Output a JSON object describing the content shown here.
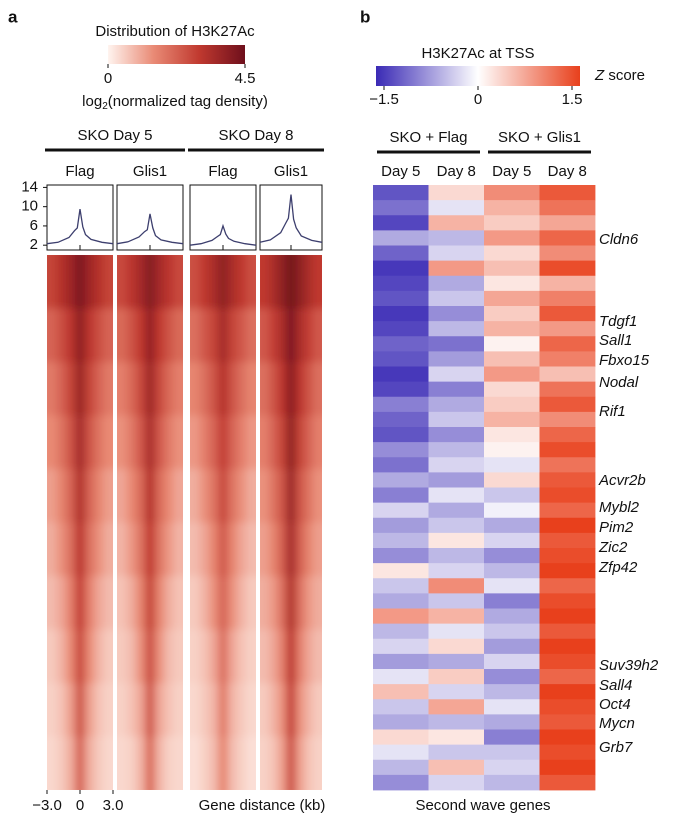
{
  "chart_data": [
    {
      "type": "heatmap_profile",
      "panel_label": "a",
      "colorbar_title": "Distribution of H3K27Ac",
      "colorbar_range": [
        0,
        4.5
      ],
      "colorbar_ticks": [
        0,
        4.5
      ],
      "colorbar_label": [
        "log",
        "2",
        "(normalized tag density)"
      ],
      "colormap": [
        "#fff4ef",
        "#e98a75",
        "#c0392f",
        "#6e0f1c"
      ],
      "groups": [
        "SKO Day 5",
        "SKO Day 8"
      ],
      "columns": [
        "Flag",
        "Glis1",
        "Flag",
        "Glis1"
      ],
      "line_color": "#3d3f6e",
      "x": [
        -3,
        -2,
        -1,
        -0.5,
        -0.25,
        0,
        0.25,
        0.5,
        1,
        2,
        3
      ],
      "profiles": [
        [
          2.3,
          2.6,
          3.6,
          5.0,
          5.6,
          9.5,
          5.8,
          4.2,
          3.2,
          2.6,
          2.3
        ],
        [
          2.3,
          2.7,
          3.7,
          4.8,
          5.2,
          8.5,
          5.6,
          4.0,
          3.1,
          2.6,
          2.3
        ],
        [
          2.0,
          2.3,
          3.0,
          3.8,
          4.2,
          6.0,
          4.3,
          3.4,
          2.8,
          2.3,
          2.0
        ],
        [
          2.6,
          3.1,
          4.6,
          6.6,
          7.6,
          12.5,
          7.4,
          5.6,
          3.9,
          3.0,
          2.6
        ]
      ],
      "xlim": [
        -3,
        3
      ],
      "ylim": [
        1,
        14.5
      ],
      "yticks": [
        14,
        10,
        6,
        2
      ],
      "xticks": [
        {
          "value": -3,
          "label": "−3.0"
        },
        0,
        {
          "value": 3,
          "label": "3.0"
        }
      ],
      "xlabel": "Gene distance (kb)",
      "heatmaps": [
        [
          [
            2.8,
            3.2,
            3.6,
            4.2,
            3.6,
            3.2,
            2.8
          ],
          [
            2.2,
            2.6,
            3.1,
            3.9,
            3.1,
            2.6,
            2.2
          ],
          [
            1.8,
            2.2,
            2.8,
            3.7,
            2.8,
            2.2,
            1.8
          ],
          [
            1.5,
            1.9,
            2.5,
            3.5,
            2.5,
            1.9,
            1.5
          ],
          [
            1.2,
            1.6,
            2.2,
            3.3,
            2.2,
            1.6,
            1.2
          ],
          [
            1.0,
            1.4,
            2.0,
            3.1,
            2.0,
            1.4,
            1.0
          ],
          [
            0.8,
            1.1,
            1.7,
            2.9,
            1.7,
            1.1,
            0.8
          ],
          [
            0.6,
            0.9,
            1.5,
            2.7,
            1.5,
            0.9,
            0.6
          ],
          [
            0.5,
            0.7,
            1.2,
            2.5,
            1.2,
            0.7,
            0.5
          ],
          [
            0.4,
            0.6,
            1.0,
            2.2,
            1.0,
            0.6,
            0.4
          ]
        ],
        [
          [
            2.7,
            3.1,
            3.5,
            4.1,
            3.5,
            3.1,
            2.7
          ],
          [
            2.1,
            2.5,
            3.0,
            3.8,
            3.0,
            2.5,
            2.1
          ],
          [
            1.7,
            2.1,
            2.7,
            3.6,
            2.7,
            2.1,
            1.7
          ],
          [
            1.4,
            1.8,
            2.4,
            3.4,
            2.4,
            1.8,
            1.4
          ],
          [
            1.1,
            1.5,
            2.1,
            3.2,
            2.1,
            1.5,
            1.1
          ],
          [
            0.9,
            1.3,
            1.9,
            3.0,
            1.9,
            1.3,
            0.9
          ],
          [
            0.7,
            1.0,
            1.6,
            2.8,
            1.6,
            1.0,
            0.7
          ],
          [
            0.6,
            0.8,
            1.4,
            2.6,
            1.4,
            0.8,
            0.6
          ],
          [
            0.5,
            0.7,
            1.1,
            2.4,
            1.1,
            0.7,
            0.5
          ],
          [
            0.4,
            0.5,
            0.9,
            2.1,
            0.9,
            0.5,
            0.4
          ]
        ],
        [
          [
            2.6,
            3.0,
            3.4,
            3.9,
            3.4,
            3.0,
            2.6
          ],
          [
            2.0,
            2.4,
            2.8,
            3.5,
            2.8,
            2.4,
            2.0
          ],
          [
            1.6,
            2.0,
            2.5,
            3.2,
            2.5,
            2.0,
            1.6
          ],
          [
            1.3,
            1.7,
            2.2,
            2.9,
            2.2,
            1.7,
            1.3
          ],
          [
            1.0,
            1.4,
            1.9,
            2.7,
            1.9,
            1.4,
            1.0
          ],
          [
            0.8,
            1.1,
            1.6,
            2.4,
            1.6,
            1.1,
            0.8
          ],
          [
            0.6,
            0.9,
            1.4,
            2.2,
            1.4,
            0.9,
            0.6
          ],
          [
            0.5,
            0.7,
            1.1,
            2.0,
            1.1,
            0.7,
            0.5
          ],
          [
            0.4,
            0.6,
            0.9,
            1.8,
            0.9,
            0.6,
            0.4
          ],
          [
            0.3,
            0.5,
            0.8,
            1.6,
            0.8,
            0.5,
            0.3
          ]
        ],
        [
          [
            3.0,
            3.4,
            3.9,
            4.4,
            3.9,
            3.4,
            3.0
          ],
          [
            2.4,
            2.9,
            3.4,
            4.2,
            3.4,
            2.9,
            2.4
          ],
          [
            2.0,
            2.5,
            3.1,
            4.0,
            3.1,
            2.5,
            2.0
          ],
          [
            1.7,
            2.2,
            2.8,
            3.9,
            2.8,
            2.2,
            1.7
          ],
          [
            1.4,
            1.9,
            2.5,
            3.7,
            2.5,
            1.9,
            1.4
          ],
          [
            1.2,
            1.6,
            2.3,
            3.5,
            2.3,
            1.6,
            1.2
          ],
          [
            1.0,
            1.3,
            2.0,
            3.3,
            2.0,
            1.3,
            1.0
          ],
          [
            0.8,
            1.1,
            1.7,
            3.1,
            1.7,
            1.1,
            0.8
          ],
          [
            0.6,
            0.9,
            1.4,
            2.9,
            1.4,
            0.9,
            0.6
          ],
          [
            0.5,
            0.7,
            1.2,
            2.6,
            1.2,
            0.7,
            0.5
          ]
        ]
      ]
    },
    {
      "type": "heatmap",
      "panel_label": "b",
      "title": "H3K27Ac at TSS",
      "colorbar_range": [
        -1.5,
        1.5
      ],
      "colorbar_ticks": [
        {
          "value": -1.5,
          "label": "−1.5"
        },
        0,
        1.5
      ],
      "colorbar_label": [
        "Z",
        " score"
      ],
      "colormap": [
        "#3a2ab5",
        "#ffffff",
        "#e8401c"
      ],
      "groups": [
        "SKO + Flag",
        "SKO + Glis1"
      ],
      "columns": [
        "Day 5",
        "Day 8",
        "Day 5",
        "Day 8"
      ],
      "values": [
        [
          -1.2,
          -1.0,
          -1.3,
          -0.6,
          -1.1,
          -1.4,
          -1.3,
          -1.2,
          -1.4,
          -1.3,
          -1.1,
          -1.2,
          -1.4,
          -1.3,
          -0.9,
          -1.1,
          -1.2,
          -0.8,
          -1.0,
          -0.6,
          -0.9,
          -0.3,
          -0.7,
          -0.5,
          -0.8,
          0.2,
          -0.4,
          -0.6,
          0.8,
          -0.5,
          -0.3,
          -0.7,
          -0.2,
          0.5,
          -0.4,
          -0.6,
          0.3,
          -0.2,
          -0.5,
          -0.8
        ],
        [
          0.3,
          -0.2,
          0.6,
          -0.5,
          -0.3,
          0.8,
          -0.6,
          -0.4,
          -0.8,
          -0.5,
          -1.0,
          -0.7,
          -0.3,
          -0.9,
          -0.6,
          -0.4,
          -0.8,
          -0.5,
          -0.3,
          -0.7,
          -0.2,
          -0.6,
          -0.4,
          0.2,
          -0.5,
          -0.3,
          0.9,
          -0.4,
          0.6,
          -0.2,
          0.3,
          -0.6,
          0.4,
          -0.3,
          0.7,
          -0.5,
          0.2,
          -0.4,
          0.5,
          -0.3
        ],
        [
          0.9,
          0.6,
          0.4,
          0.8,
          0.3,
          0.5,
          0.2,
          0.7,
          0.4,
          0.6,
          0.1,
          0.5,
          0.8,
          0.3,
          0.4,
          0.6,
          0.2,
          0.1,
          -0.2,
          0.3,
          -0.4,
          -0.1,
          -0.6,
          -0.3,
          -0.8,
          -0.5,
          -0.2,
          -0.9,
          -0.6,
          -0.4,
          -0.7,
          -0.3,
          -0.8,
          -0.5,
          -0.2,
          -0.6,
          -0.9,
          -0.4,
          -0.3,
          -0.5
        ],
        [
          1.3,
          1.1,
          0.7,
          1.2,
          0.9,
          1.4,
          0.6,
          1.0,
          1.3,
          0.8,
          1.2,
          1.0,
          0.5,
          1.1,
          1.3,
          0.9,
          1.2,
          1.4,
          1.1,
          1.3,
          1.4,
          1.2,
          1.5,
          1.3,
          1.4,
          1.5,
          1.2,
          1.4,
          1.5,
          1.3,
          1.5,
          1.4,
          1.2,
          1.5,
          1.4,
          1.3,
          1.5,
          1.4,
          1.5,
          1.3
        ]
      ],
      "genes": [
        "Cldn6",
        "Tdgf1",
        "Sall1",
        "Fbxo15",
        "Nodal",
        "Rif1",
        "Acvr2b",
        "Mybl2",
        "Pim2",
        "Zic2",
        "Zfp42",
        "Suv39h2",
        "Sall4",
        "Oct4",
        "Mycn",
        "Grb7"
      ],
      "xlabel": "Second wave genes"
    }
  ]
}
